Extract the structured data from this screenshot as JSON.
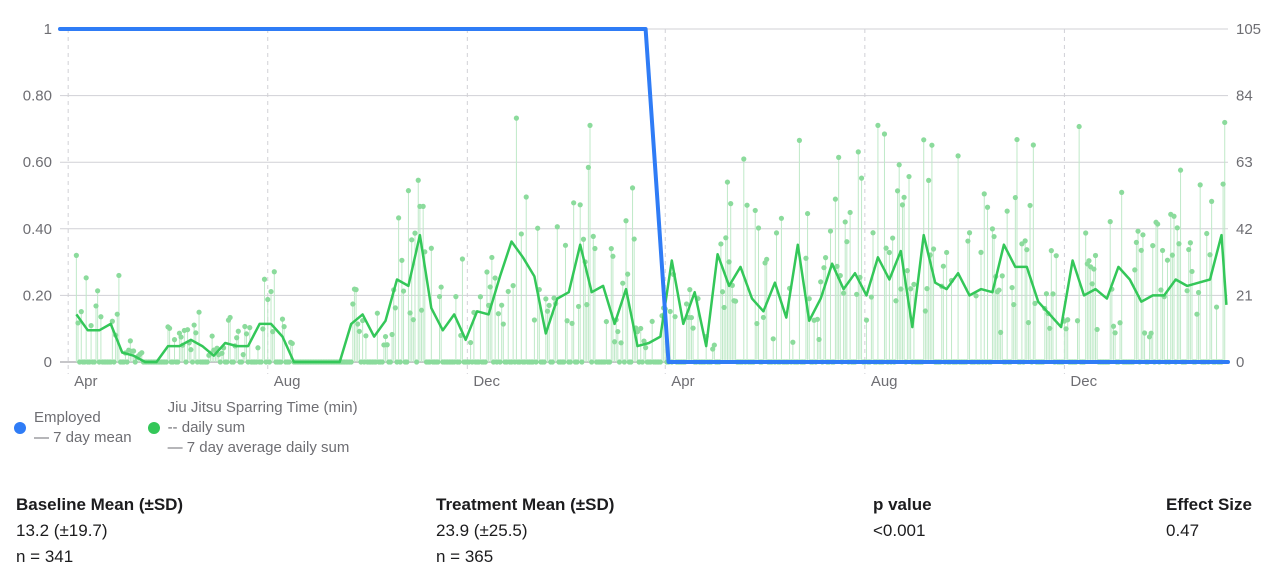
{
  "chart_data": {
    "type": "line",
    "x_axis": {
      "tick_labels": [
        "Apr",
        "Aug",
        "Dec",
        "Apr",
        "Aug",
        "Dec"
      ],
      "tick_dates": [
        "2022-04-01",
        "2022-08-01",
        "2022-12-01",
        "2023-04-01",
        "2023-08-01",
        "2023-12-01"
      ],
      "range": [
        "2022-03-27",
        "2024-03-10"
      ]
    },
    "y_left": {
      "tick_labels": [
        "0",
        "0.20",
        "0.40",
        "0.60",
        "0.80",
        "1"
      ],
      "range": [
        0,
        1
      ]
    },
    "y_right": {
      "tick_labels": [
        "0",
        "21",
        "42",
        "63",
        "84",
        "105"
      ],
      "range": [
        0,
        105
      ]
    },
    "grid": true,
    "series": [
      {
        "name": "Employed",
        "sub": "— 7 day mean",
        "axis": "left",
        "color": "#2f7cf6",
        "points": [
          [
            "2022-03-27",
            1
          ],
          [
            "2023-03-20",
            1
          ],
          [
            "2023-03-27",
            0.5
          ],
          [
            "2023-04-03",
            0
          ],
          [
            "2024-03-10",
            0
          ]
        ]
      },
      {
        "name": "Jiu Jitsu Sparring Time (min)",
        "sub1": "-- daily sum",
        "sub2": "— 7 day average daily sum",
        "axis": "right",
        "color": "#34c759",
        "weekly_avg": [
          [
            "2022-04-06",
            15
          ],
          [
            "2022-04-13",
            10
          ],
          [
            "2022-04-20",
            10
          ],
          [
            "2022-04-27",
            12
          ],
          [
            "2022-05-04",
            3
          ],
          [
            "2022-05-11",
            2
          ],
          [
            "2022-05-18",
            0
          ],
          [
            "2022-05-25",
            0
          ],
          [
            "2022-06-01",
            5
          ],
          [
            "2022-06-08",
            5
          ],
          [
            "2022-06-15",
            7
          ],
          [
            "2022-06-22",
            5
          ],
          [
            "2022-06-29",
            2
          ],
          [
            "2022-07-06",
            6
          ],
          [
            "2022-07-13",
            5
          ],
          [
            "2022-07-20",
            5
          ],
          [
            "2022-07-27",
            12
          ],
          [
            "2022-08-03",
            12
          ],
          [
            "2022-08-10",
            8
          ],
          [
            "2022-08-17",
            0
          ],
          [
            "2022-08-24",
            0
          ],
          [
            "2022-08-31",
            0
          ],
          [
            "2022-09-07",
            0
          ],
          [
            "2022-09-14",
            0
          ],
          [
            "2022-09-21",
            12
          ],
          [
            "2022-09-28",
            15
          ],
          [
            "2022-10-05",
            8
          ],
          [
            "2022-10-12",
            13
          ],
          [
            "2022-10-19",
            26
          ],
          [
            "2022-10-26",
            24
          ],
          [
            "2022-11-02",
            40
          ],
          [
            "2022-11-09",
            17
          ],
          [
            "2022-11-16",
            10
          ],
          [
            "2022-11-23",
            15
          ],
          [
            "2022-11-30",
            7
          ],
          [
            "2022-12-07",
            16
          ],
          [
            "2022-12-14",
            15
          ],
          [
            "2022-12-21",
            27
          ],
          [
            "2022-12-28",
            38
          ],
          [
            "2023-01-04",
            33
          ],
          [
            "2023-01-11",
            27
          ],
          [
            "2023-01-18",
            9
          ],
          [
            "2023-01-25",
            20
          ],
          [
            "2023-02-01",
            22
          ],
          [
            "2023-02-08",
            37
          ],
          [
            "2023-02-15",
            22
          ],
          [
            "2023-02-22",
            24
          ],
          [
            "2023-03-01",
            12
          ],
          [
            "2023-03-08",
            23
          ],
          [
            "2023-03-15",
            5
          ],
          [
            "2023-03-22",
            6
          ],
          [
            "2023-03-29",
            8
          ],
          [
            "2023-04-05",
            32
          ],
          [
            "2023-04-12",
            12
          ],
          [
            "2023-04-19",
            22
          ],
          [
            "2023-04-26",
            5
          ],
          [
            "2023-05-03",
            34
          ],
          [
            "2023-05-10",
            24
          ],
          [
            "2023-05-17",
            30
          ],
          [
            "2023-05-24",
            20
          ],
          [
            "2023-05-31",
            16
          ],
          [
            "2023-06-07",
            25
          ],
          [
            "2023-06-14",
            14
          ],
          [
            "2023-06-21",
            37
          ],
          [
            "2023-06-28",
            13
          ],
          [
            "2023-07-05",
            20
          ],
          [
            "2023-07-12",
            31
          ],
          [
            "2023-07-19",
            23
          ],
          [
            "2023-07-26",
            28
          ],
          [
            "2023-08-02",
            21
          ],
          [
            "2023-08-09",
            33
          ],
          [
            "2023-08-16",
            26
          ],
          [
            "2023-08-23",
            35
          ],
          [
            "2023-08-30",
            11
          ],
          [
            "2023-09-06",
            40
          ],
          [
            "2023-09-13",
            25
          ],
          [
            "2023-09-20",
            23
          ],
          [
            "2023-09-27",
            28
          ],
          [
            "2023-10-04",
            21
          ],
          [
            "2023-10-11",
            23
          ],
          [
            "2023-10-18",
            22
          ],
          [
            "2023-10-25",
            37
          ],
          [
            "2023-11-01",
            30
          ],
          [
            "2023-11-08",
            30
          ],
          [
            "2023-11-15",
            19
          ],
          [
            "2023-11-22",
            15
          ],
          [
            "2023-11-29",
            11
          ],
          [
            "2023-12-06",
            32
          ],
          [
            "2023-12-13",
            21
          ],
          [
            "2023-12-20",
            23
          ],
          [
            "2023-12-27",
            20
          ],
          [
            "2024-01-03",
            30
          ],
          [
            "2024-01-10",
            26
          ],
          [
            "2024-01-17",
            19
          ],
          [
            "2024-01-24",
            21
          ],
          [
            "2024-01-31",
            21
          ],
          [
            "2024-02-07",
            26
          ],
          [
            "2024-02-14",
            24
          ],
          [
            "2024-02-21",
            25
          ],
          [
            "2024-02-28",
            26
          ],
          [
            "2024-03-06",
            40
          ],
          [
            "2024-03-09",
            18
          ]
        ]
      }
    ]
  },
  "stats": [
    {
      "header": "Baseline Mean (±SD)",
      "value": "13.2 (±19.7)",
      "n": "n = 341"
    },
    {
      "header": "Treatment Mean (±SD)",
      "value": "23.9 (±25.5)",
      "n": "n = 365"
    },
    {
      "header": "p value",
      "value": "<0.001"
    },
    {
      "header": "Effect Size",
      "value": "0.47"
    }
  ]
}
